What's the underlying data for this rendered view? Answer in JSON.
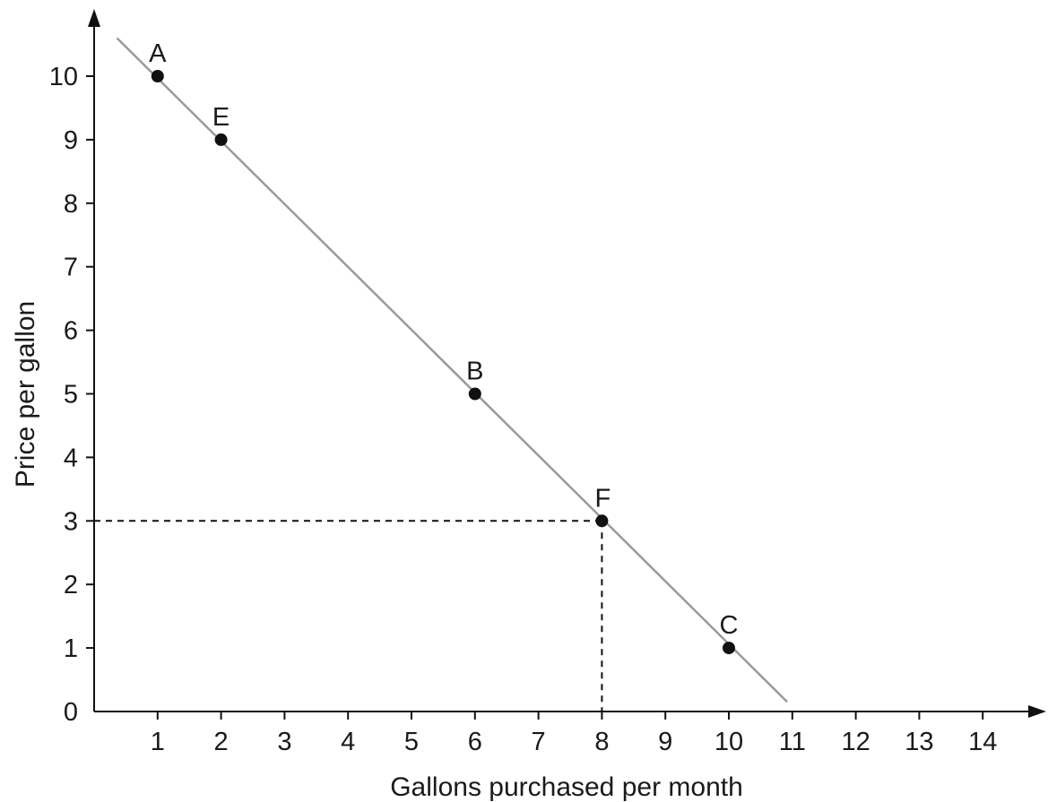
{
  "chart_data": {
    "type": "line",
    "title": "",
    "xlabel": "Gallons purchased per month",
    "ylabel": "Price per gallon",
    "xlim": [
      0,
      15
    ],
    "ylim": [
      0,
      11
    ],
    "x_ticks": [
      1,
      2,
      3,
      4,
      5,
      6,
      7,
      8,
      9,
      10,
      11,
      12,
      13,
      14
    ],
    "y_ticks": [
      0,
      1,
      2,
      3,
      4,
      5,
      6,
      7,
      8,
      9,
      10
    ],
    "grid": false,
    "demand_line": {
      "x": [
        0.36,
        10.92
      ],
      "y": [
        10.6,
        0.15
      ]
    },
    "points": [
      {
        "label": "A",
        "x": 1,
        "y": 10
      },
      {
        "label": "E",
        "x": 2,
        "y": 9
      },
      {
        "label": "B",
        "x": 6,
        "y": 5
      },
      {
        "label": "F",
        "x": 8,
        "y": 3
      },
      {
        "label": "C",
        "x": 10,
        "y": 1
      }
    ],
    "reference_lines": {
      "x": 8,
      "y": 3,
      "style": "dashed"
    },
    "colors": {
      "line": "#9a9a9a",
      "points": "#111111",
      "axes": "#111111"
    }
  }
}
